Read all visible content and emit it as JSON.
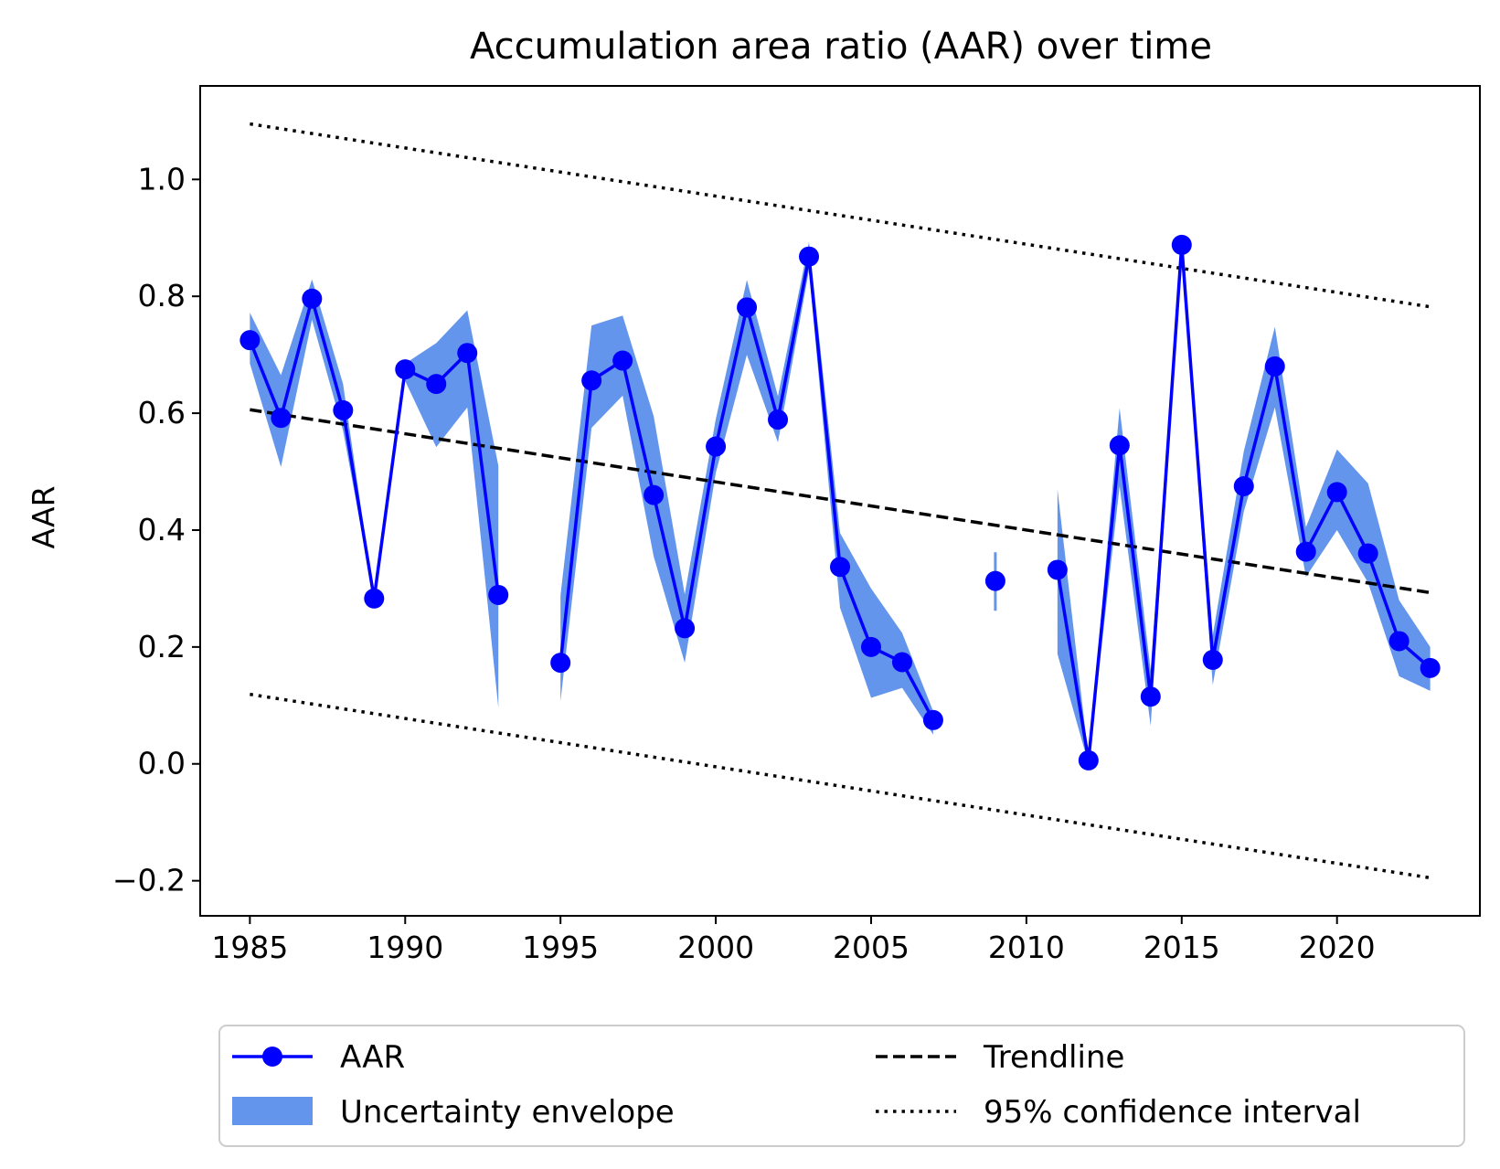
{
  "chart_data": {
    "type": "line",
    "title": "Accumulation area ratio (AAR) over time",
    "xlabel": "",
    "ylabel": "AAR",
    "xlim": [
      1983.4,
      2024.6
    ],
    "ylim": [
      -0.26,
      1.16
    ],
    "x_ticks": [
      1985,
      1990,
      1995,
      2000,
      2005,
      2010,
      2015,
      2020
    ],
    "x_tick_labels": [
      "1985",
      "1990",
      "1995",
      "2000",
      "2005",
      "2010",
      "2015",
      "2020"
    ],
    "y_ticks": [
      -0.2,
      0.0,
      0.2,
      0.4,
      0.6,
      0.8,
      1.0
    ],
    "y_tick_labels": [
      "−0.2",
      "0.0",
      "0.2",
      "0.4",
      "0.6",
      "0.8",
      "1.0"
    ],
    "grid": false,
    "legend_position": "below-center",
    "colors": {
      "aar": "#0000ff",
      "envelope": "#6495ed",
      "trend": "#000000"
    },
    "series": [
      {
        "name": "AAR",
        "x": [
          1985,
          1986,
          1987,
          1988,
          1989,
          1990,
          1991,
          1992,
          1993,
          1994,
          1995,
          1996,
          1997,
          1998,
          1999,
          2000,
          2001,
          2002,
          2003,
          2004,
          2005,
          2006,
          2007,
          2008,
          2009,
          2010,
          2011,
          2012,
          2013,
          2014,
          2015,
          2016,
          2017,
          2018,
          2019,
          2020,
          2021,
          2022,
          2023
        ],
        "y": [
          0.725,
          0.592,
          0.796,
          0.605,
          0.283,
          0.675,
          0.65,
          0.703,
          0.289,
          null,
          0.173,
          0.656,
          0.69,
          0.46,
          0.232,
          0.543,
          0.781,
          0.589,
          0.868,
          0.337,
          0.2,
          0.174,
          0.075,
          null,
          0.313,
          null,
          0.332,
          0.006,
          0.545,
          0.115,
          0.888,
          0.178,
          0.475,
          0.68,
          0.363,
          0.465,
          0.36,
          0.21,
          0.164
        ]
      }
    ],
    "envelope": {
      "name": "Uncertainty envelope",
      "lower": [
        0.685,
        0.508,
        0.76,
        0.57,
        0.283,
        0.655,
        0.542,
        0.61,
        0.096,
        null,
        0.107,
        0.575,
        0.63,
        0.355,
        0.173,
        0.498,
        0.7,
        0.55,
        0.845,
        0.267,
        0.113,
        0.13,
        0.05,
        null,
        0.262,
        null,
        0.188,
        0.0,
        0.475,
        0.065,
        0.87,
        0.135,
        0.432,
        0.61,
        0.32,
        0.4,
        0.31,
        0.15,
        0.125
      ],
      "upper": [
        0.772,
        0.665,
        0.829,
        0.65,
        0.283,
        0.685,
        0.72,
        0.776,
        0.51,
        null,
        0.288,
        0.75,
        0.767,
        0.595,
        0.29,
        0.59,
        0.828,
        0.629,
        0.893,
        0.395,
        0.3,
        0.224,
        0.09,
        null,
        0.362,
        null,
        0.47,
        0.01,
        0.609,
        0.16,
        0.905,
        0.22,
        0.535,
        0.748,
        0.405,
        0.538,
        0.48,
        0.28,
        0.2
      ]
    },
    "trendline": {
      "name": "Trendline",
      "x": [
        1985,
        2023
      ],
      "y": [
        0.606,
        0.293
      ]
    },
    "confidence_interval": {
      "name": "95% confidence interval",
      "upper": {
        "x": [
          1985,
          2023
        ],
        "y": [
          1.095,
          0.782
        ]
      },
      "lower": {
        "x": [
          1985,
          2023
        ],
        "y": [
          0.119,
          -0.195
        ]
      }
    }
  },
  "legend": {
    "items": [
      {
        "key": "aar",
        "label": "AAR"
      },
      {
        "key": "envelope",
        "label": "Uncertainty envelope"
      },
      {
        "key": "trend",
        "label": "Trendline"
      },
      {
        "key": "ci",
        "label": "95% confidence interval"
      }
    ]
  }
}
